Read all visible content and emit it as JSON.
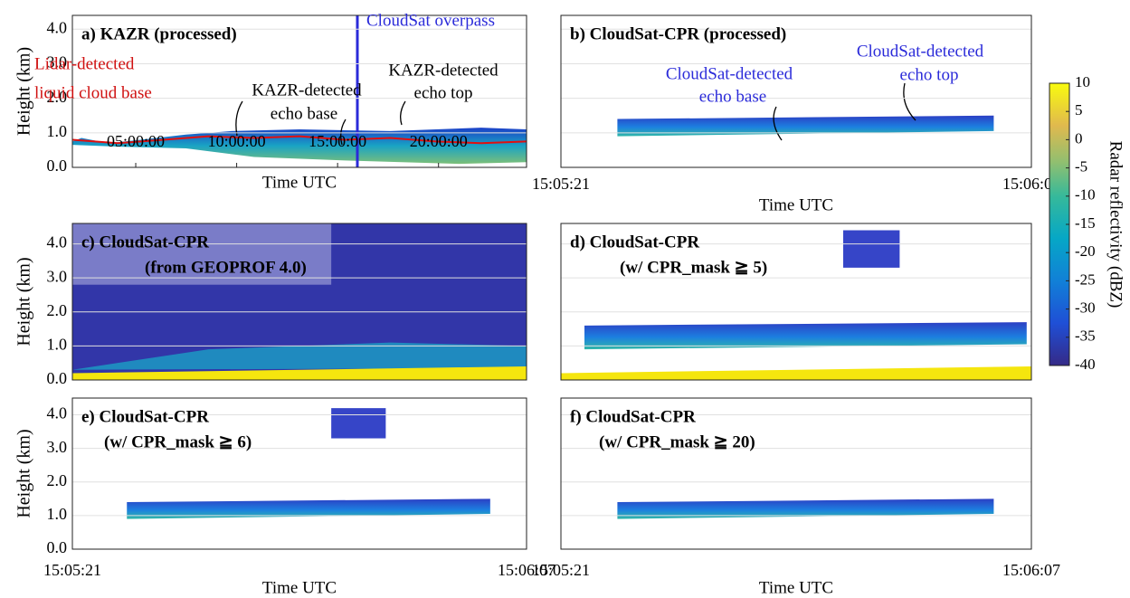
{
  "chart_data": [
    {
      "type": "heatmap",
      "title": [
        "a) KAZR (processed)"
      ],
      "xlabel": "Time UTC",
      "ylabel": "Height (km)",
      "xlim": [
        6700,
        87700
      ],
      "xticks": [
        {
          "value": 18000,
          "label": "05:00:00"
        },
        {
          "value": 36000,
          "label": "10:00:00"
        },
        {
          "value": 54000,
          "label": "15:00:00"
        },
        {
          "value": 72000,
          "label": "20:00:00"
        }
      ],
      "ylim": [
        0,
        4.4
      ],
      "yticks": [
        {
          "value": 0,
          "label": "0.0"
        },
        {
          "value": 1,
          "label": "1.0"
        },
        {
          "value": 2,
          "label": "2.0"
        },
        {
          "value": 3,
          "label": "3.0"
        },
        {
          "value": 4,
          "label": "4.0"
        }
      ],
      "ytick_labels": true,
      "grid": true,
      "annotations": [
        {
          "text": "CloudSat overpass",
          "color": "#2b2bd9"
        },
        {
          "text": "Lidar-detected",
          "color": "#d01010"
        },
        {
          "text": "liquid cloud base",
          "color": "#d01010"
        },
        {
          "text": "KAZR-detected",
          "color": "#000000"
        },
        {
          "text": "echo base",
          "color": "#000000"
        },
        {
          "text": "KAZR-detected",
          "color": "#000000"
        },
        {
          "text": "echo top",
          "color": "#000000"
        }
      ]
    },
    {
      "type": "heatmap",
      "title": [
        "b) CloudSat-CPR (processed)"
      ],
      "xlabel": "Time UTC",
      "xlim": [
        54321,
        54367
      ],
      "xticks": [
        {
          "value": 54321,
          "label": "15:05:21"
        },
        {
          "value": 54367,
          "label": "15:06:07"
        }
      ],
      "ylim": [
        0,
        4.4
      ],
      "yticks": [
        0,
        1,
        2,
        3,
        4
      ],
      "ytick_labels": false,
      "grid": true,
      "annotations": [
        {
          "text": "CloudSat-detected",
          "color": "#2b2bd9"
        },
        {
          "text": "echo base",
          "color": "#2b2bd9"
        },
        {
          "text": "CloudSat-detected",
          "color": "#2b2bd9"
        },
        {
          "text": "echo top",
          "color": "#2b2bd9"
        }
      ]
    },
    {
      "type": "heatmap",
      "title": [
        "c) CloudSat-CPR",
        "(from GEOPROF 4.0)"
      ],
      "ylabel": "Height (km)",
      "xlim": [
        54321,
        54367
      ],
      "ylim": [
        0,
        4.6
      ],
      "yticks": [
        {
          "value": 0,
          "label": "0.0"
        },
        {
          "value": 1,
          "label": "1.0"
        },
        {
          "value": 2,
          "label": "2.0"
        },
        {
          "value": 3,
          "label": "3.0"
        },
        {
          "value": 4,
          "label": "4.0"
        }
      ],
      "ytick_labels": true,
      "grid": true
    },
    {
      "type": "heatmap",
      "title": [
        "d) CloudSat-CPR",
        "(w/ CPR_mask ≧ 5)"
      ],
      "xlim": [
        54321,
        54367
      ],
      "ylim": [
        0,
        4.6
      ],
      "yticks": [
        0,
        1,
        2,
        3,
        4
      ],
      "ytick_labels": false,
      "grid": true
    },
    {
      "type": "heatmap",
      "title": [
        "e) CloudSat-CPR",
        "(w/ CPR_mask ≧ 6)"
      ],
      "xlabel": "Time UTC",
      "ylabel": "Height (km)",
      "xlim": [
        54321,
        54367
      ],
      "xticks": [
        {
          "value": 54321,
          "label": "15:05:21"
        },
        {
          "value": 54367,
          "label": "15:06:07"
        }
      ],
      "ylim": [
        0,
        4.5
      ],
      "yticks": [
        {
          "value": 0,
          "label": "0.0"
        },
        {
          "value": 1,
          "label": "1.0"
        },
        {
          "value": 2,
          "label": "2.0"
        },
        {
          "value": 3,
          "label": "3.0"
        },
        {
          "value": 4,
          "label": "4.0"
        }
      ],
      "ytick_labels": true,
      "grid": true
    },
    {
      "type": "heatmap",
      "title": [
        "f) CloudSat-CPR",
        "(w/ CPR_mask ≧ 20)"
      ],
      "xlabel": "Time UTC",
      "xlim": [
        54321,
        54367
      ],
      "xticks": [
        {
          "value": 54321,
          "label": "15:05:21"
        },
        {
          "value": 54367,
          "label": "15:06:07"
        }
      ],
      "ylim": [
        0,
        4.5
      ],
      "yticks": [
        0,
        1,
        2,
        3,
        4
      ],
      "ytick_labels": false,
      "grid": true
    },
    {
      "type": "colorbar",
      "label": "Radar reflectivity (dBZ)",
      "lim": [
        -40,
        10
      ],
      "ticks": [
        10,
        5,
        0,
        -5,
        -10,
        -15,
        -20,
        -25,
        -30,
        -35,
        -40
      ]
    }
  ]
}
